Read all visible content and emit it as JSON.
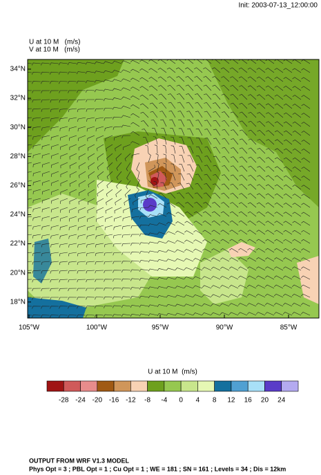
{
  "header": {
    "init": "Init: 2003-07-13_12:00:00",
    "field_u": "U at 10 M   (m/s)",
    "field_v": "V at 10 M   (m/s)"
  },
  "map": {
    "lat_labels": [
      "34°N",
      "32°N",
      "30°N",
      "28°N",
      "26°N",
      "24°N",
      "22°N",
      "20°N",
      "18°N"
    ],
    "lon_labels": [
      "105°W",
      "100°W",
      "95°W",
      "90°W",
      "85°W"
    ]
  },
  "colorbar": {
    "title": "U at 10 M  (m/s)",
    "labels": [
      -28,
      -24,
      -20,
      -16,
      -12,
      -8,
      -4,
      0,
      4,
      8,
      12,
      16,
      20,
      24
    ],
    "colors": [
      "#a01414",
      "#d05a5a",
      "#e88c8c",
      "#a05a14",
      "#d0965a",
      "#f8d2b4",
      "#6ea01e",
      "#96c850",
      "#c8e68c",
      "#e6f8b4",
      "#14709e",
      "#50a0d2",
      "#a8e0f8",
      "#5a3cc8",
      "#b4aaf0"
    ]
  },
  "footer": {
    "line1": "OUTPUT FROM WRF V1.3 MODEL",
    "line2": "Phys Opt = 3 ; PBL Opt = 1 ; Cu Opt = 1 ; WE = 181 ; SN = 161 ; Levels = 34 ; Dis = 12km"
  }
}
